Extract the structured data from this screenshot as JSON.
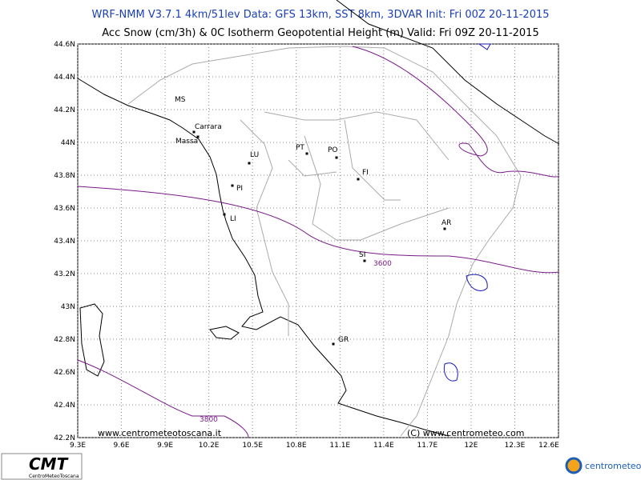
{
  "header": {
    "line1": "WRF-NMM V3.7.1 4km/51lev  Data: GFS 13km, SST 8km, 3DVAR  Init: Fri 00Z 20-11-2015",
    "line2": "Acc Snow (cm/3h) & 0C Isotherm Geopotential Height (m)  Valid: Fri 09Z 20-11-2015"
  },
  "map": {
    "lon_ticks": [
      {
        "value": 9.3,
        "label": "9.3E"
      },
      {
        "value": 9.6,
        "label": "9.6E"
      },
      {
        "value": 9.9,
        "label": "9.9E"
      },
      {
        "value": 10.2,
        "label": "10.2E"
      },
      {
        "value": 10.5,
        "label": "10.5E"
      },
      {
        "value": 10.8,
        "label": "10.8E"
      },
      {
        "value": 11.1,
        "label": "11.1E"
      },
      {
        "value": 11.4,
        "label": "11.4E"
      },
      {
        "value": 11.7,
        "label": "11.7E"
      },
      {
        "value": 12,
        "label": "12E"
      },
      {
        "value": 12.3,
        "label": "12.3E"
      },
      {
        "value": 12.6,
        "label": "12.6E"
      }
    ],
    "lat_ticks": [
      {
        "value": 42.2,
        "label": "42.2N"
      },
      {
        "value": 42.4,
        "label": "42.4N"
      },
      {
        "value": 42.6,
        "label": "42.6N"
      },
      {
        "value": 42.8,
        "label": "42.8N"
      },
      {
        "value": 43,
        "label": "43N"
      },
      {
        "value": 43.2,
        "label": "43.2N"
      },
      {
        "value": 43.4,
        "label": "43.4N"
      },
      {
        "value": 43.6,
        "label": "43.6N"
      },
      {
        "value": 43.8,
        "label": "43.8N"
      },
      {
        "value": 44,
        "label": "44N"
      },
      {
        "value": 44.2,
        "label": "44.2N"
      },
      {
        "value": 44.4,
        "label": "44.4N"
      },
      {
        "value": 44.6,
        "label": "44.6N"
      }
    ],
    "cities": [
      "MS",
      "Carrara",
      "Massa",
      "LU",
      "PT",
      "PO",
      "FI",
      "PI",
      "LI",
      "SI",
      "AR",
      "GR"
    ],
    "contour_labels": [
      "3600",
      "3800"
    ],
    "watermarks": [
      "www.centrometeotoscana.it",
      "(C) www.centrometeo.com"
    ]
  },
  "footer": {
    "logo_left": "CMT",
    "logo_left_sub": "CentroMeteoToscana",
    "logo_right": "centrometeo"
  }
}
